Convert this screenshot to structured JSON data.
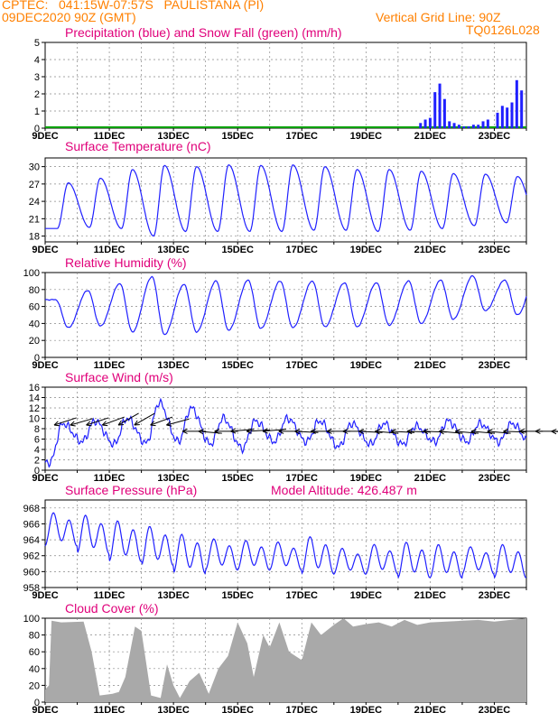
{
  "header": {
    "line1": "CPTEC:   041:15W-07:57S   PAULISTANA (PI)",
    "line2": "09DEC2020 90Z (GMT)",
    "grid_note": "Vertical Grid Line: 90Z",
    "code": "TQ0126L028"
  },
  "colors": {
    "header": "#ff8000",
    "title": "#e0007a",
    "line": "#2020ff",
    "snow": "#00a000",
    "cloud": "#a9a9a9",
    "wind_arrow": "#000000"
  },
  "chart_data": [
    {
      "type": "bar",
      "title": "Precipitation (blue) and Snow Fall (green) (mm/h)",
      "ylim": [
        0,
        5
      ],
      "yticks": [
        0,
        1,
        2,
        3,
        4,
        5
      ],
      "xticks": [
        "9DEC",
        "11DEC",
        "13DEC",
        "15DEC",
        "17DEC",
        "19DEC",
        "21DEC",
        "23DEC"
      ],
      "series": [
        {
          "name": "Precipitation",
          "x": [
            11.7,
            11.85,
            12.0,
            12.15,
            12.3,
            12.45,
            12.6,
            12.75,
            12.9,
            13.05,
            13.2,
            13.35,
            13.5,
            13.65,
            13.8,
            14.1,
            14.25,
            14.4,
            14.55,
            14.7,
            14.85
          ],
          "values": [
            0.3,
            0.5,
            0.6,
            2.1,
            2.6,
            1.7,
            0.4,
            0.3,
            0.2,
            0.1,
            0.1,
            0.2,
            0.2,
            0.4,
            0.5,
            0.9,
            1.3,
            1.2,
            1.5,
            2.8,
            2.2
          ]
        },
        {
          "name": "Snow Fall",
          "x": [],
          "values": []
        }
      ]
    },
    {
      "type": "line",
      "title": "Surface Temperature (nC)",
      "ylim": [
        17,
        31.5
      ],
      "yticks": [
        18,
        21,
        24,
        27,
        30
      ],
      "xticks": [
        "9DEC",
        "11DEC",
        "13DEC",
        "15DEC",
        "17DEC",
        "19DEC",
        "21DEC",
        "23DEC"
      ],
      "series": [
        {
          "name": "Temperature",
          "peaks": [
            27.2,
            28.0,
            29.5,
            30.2,
            30.0,
            30.3,
            30.2,
            30.3,
            30.0,
            29.5,
            29.5,
            29.2,
            28.8,
            28.7,
            28.3,
            27.3,
            27.0
          ],
          "troughs": [
            19.3,
            19.5,
            19.3,
            18.0,
            18.8,
            18.8,
            18.8,
            18.8,
            19.0,
            19.0,
            18.8,
            19.0,
            19.3,
            19.8,
            20.3,
            20.0,
            21.0
          ]
        }
      ]
    },
    {
      "type": "line",
      "title": "Relative Humidity (%)",
      "ylim": [
        0,
        100
      ],
      "yticks": [
        0,
        20,
        40,
        60,
        80,
        100
      ],
      "xticks": [
        "9DEC",
        "11DEC",
        "13DEC",
        "15DEC",
        "17DEC",
        "19DEC",
        "21DEC",
        "23DEC"
      ],
      "series": [
        {
          "name": "Humidity",
          "peaks": [
            68,
            79,
            87,
            95,
            86,
            90,
            91,
            90,
            90,
            88,
            88,
            90,
            91,
            96,
            91,
            99,
            95
          ],
          "troughs": [
            35,
            37,
            30,
            27,
            30,
            32,
            34,
            35,
            36,
            36,
            38,
            40,
            45,
            55,
            50,
            50,
            60
          ]
        }
      ]
    },
    {
      "type": "line",
      "title": "Surface Wind (m/s)",
      "ylim": [
        0,
        16
      ],
      "yticks": [
        0,
        2,
        4,
        6,
        8,
        10,
        12,
        14,
        16
      ],
      "xticks": [
        "9DEC",
        "11DEC",
        "13DEC",
        "15DEC",
        "17DEC",
        "19DEC",
        "21DEC",
        "23DEC"
      ],
      "series": [
        {
          "name": "Wind speed",
          "peaks": [
            9,
            9.5,
            10,
            13,
            12,
            10,
            9.5,
            10,
            9.5,
            9,
            9,
            8.5,
            9.5,
            9,
            9,
            9,
            8
          ],
          "troughs": [
            1.5,
            5.5,
            5,
            5.2,
            5.5,
            5,
            4.2,
            5.5,
            5.5,
            4.5,
            5,
            5,
            5.5,
            5.5,
            5.5,
            5,
            1
          ]
        }
      ]
    },
    {
      "type": "line",
      "title": "Surface Pressure (hPa)",
      "annotation": "Model Altitude: 426.487 m",
      "ylim": [
        958,
        969
      ],
      "yticks": [
        958,
        960,
        962,
        964,
        966,
        968
      ],
      "xticks": [
        "9DEC",
        "11DEC",
        "13DEC",
        "15DEC",
        "17DEC",
        "19DEC",
        "21DEC",
        "23DEC"
      ],
      "series": [
        {
          "name": "Pressure",
          "peaks": [
            967.5,
            967.2,
            966.5,
            965.8,
            964.8,
            964.2,
            964.0,
            963.8,
            964.5,
            963.0,
            963.5,
            963.8,
            963.5,
            963.2,
            963.5,
            962.5,
            962.5
          ],
          "troughs": [
            963.0,
            962.0,
            961.0,
            960.5,
            959.5,
            960.0,
            960.0,
            960.0,
            959.5,
            959.5,
            959.5,
            959.0,
            959.0,
            959.5,
            959.0,
            958.5,
            959.5
          ]
        }
      ]
    },
    {
      "type": "area",
      "title": "Cloud Cover (%)",
      "ylim": [
        0,
        100
      ],
      "yticks": [
        0,
        20,
        40,
        60,
        80,
        100
      ],
      "xticks": [
        "9DEC",
        "11DEC",
        "13DEC",
        "15DEC",
        "17DEC",
        "19DEC",
        "21DEC",
        "23DEC"
      ],
      "series": [
        {
          "name": "Cloud cover",
          "x": [
            0,
            0.12,
            0.2,
            0.5,
            1.2,
            1.45,
            1.7,
            2.1,
            2.3,
            2.5,
            2.8,
            3.0,
            3.3,
            3.6,
            3.8,
            4.0,
            4.2,
            4.5,
            4.8,
            5.1,
            5.4,
            5.7,
            6.0,
            6.3,
            6.5,
            6.8,
            7.0,
            7.3,
            7.6,
            8.0,
            8.3,
            8.6,
            9.0,
            9.3,
            9.6,
            10.0,
            10.4,
            10.8,
            11.2,
            11.6,
            12.0,
            12.5,
            13.0,
            13.5,
            14.0,
            14.5,
            15.0
          ],
          "values": [
            15,
            20,
            97,
            95,
            96,
            60,
            8,
            10,
            12,
            30,
            90,
            85,
            8,
            5,
            45,
            20,
            5,
            25,
            35,
            10,
            40,
            55,
            95,
            70,
            30,
            80,
            65,
            95,
            60,
            50,
            95,
            80,
            92,
            100,
            90,
            93,
            95,
            90,
            98,
            92,
            95,
            96,
            97,
            98,
            96,
            98,
            100
          ]
        }
      ]
    }
  ],
  "wind_arrow_angles": [
    -18,
    -16,
    -18,
    -20,
    -30,
    -30,
    -20,
    -15,
    0,
    5,
    0,
    -5,
    -3,
    -5,
    0,
    3,
    0,
    0,
    0,
    3,
    5,
    3,
    2,
    2,
    5,
    5,
    5,
    5,
    2,
    0,
    0,
    3
  ]
}
